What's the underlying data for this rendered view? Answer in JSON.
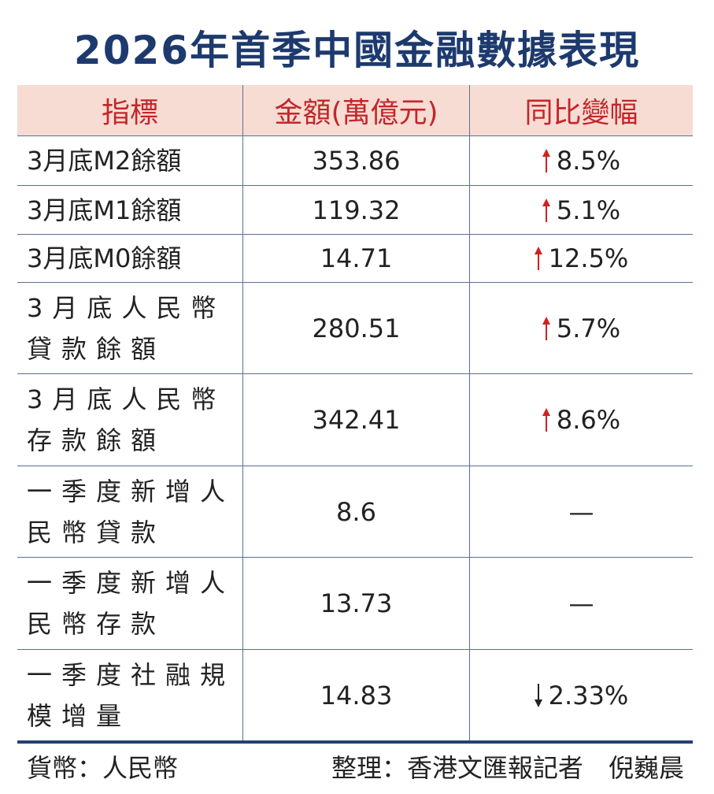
{
  "header": {
    "title": "2026年首季中國金融數據表現"
  },
  "table": {
    "columns": [
      "指標",
      "金額(萬億元)",
      "同比變幅"
    ],
    "rows": [
      [
        "3月底M2餘額",
        "353.86",
        "8.5%"
      ],
      [
        "3月底M1餘額",
        "119.32",
        "5.1%"
      ],
      [
        "3月底M0餘額",
        "14.71",
        "12.5%"
      ],
      [
        "3月底人民幣貸款餘額",
        "280.51",
        "5.7%"
      ],
      [
        "3月底人民幣存款餘額",
        "342.41",
        "8.6%"
      ],
      [
        "一季度新增人民幣貸款",
        "8.6",
        "—"
      ],
      [
        "一季度新增人民幣存款",
        "13.73",
        "—"
      ],
      [
        "一季度社融規模增量",
        "14.83",
        "2.33%"
      ]
    ]
  },
  "footer": {
    "currency": "貨幣：人民幣",
    "credit": "整理：香港文匯報記者　倪巍晨"
  }
}
